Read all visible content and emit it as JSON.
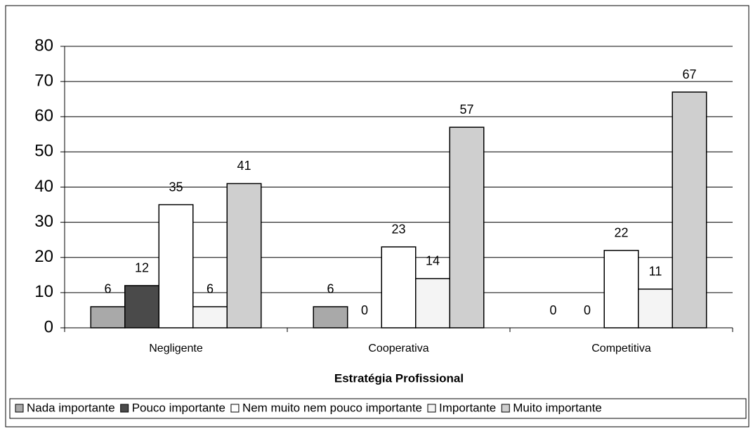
{
  "chart_data": {
    "type": "bar",
    "x_label": "Estratégia Profissional",
    "categories": [
      "Negligente",
      "Cooperativa",
      "Competitiva"
    ],
    "series": [
      {
        "name": "Nada importante",
        "color": "#a9a9a9",
        "values": [
          6,
          6,
          0
        ]
      },
      {
        "name": "Pouco importante",
        "color": "#4a4a4a",
        "values": [
          12,
          0,
          0
        ]
      },
      {
        "name": "Nem muito nem pouco importante",
        "color": "#ffffff",
        "values": [
          35,
          23,
          22
        ]
      },
      {
        "name": "Importante",
        "color": "#f4f4f4",
        "values": [
          6,
          14,
          11
        ]
      },
      {
        "name": "Muito importante",
        "color": "#cfcfcf",
        "values": [
          41,
          57,
          67
        ]
      }
    ],
    "ylim": [
      0,
      80
    ],
    "yticks": [
      0,
      10,
      20,
      30,
      40,
      50,
      60,
      70,
      80
    ],
    "grid": true,
    "legend": "bottom"
  }
}
